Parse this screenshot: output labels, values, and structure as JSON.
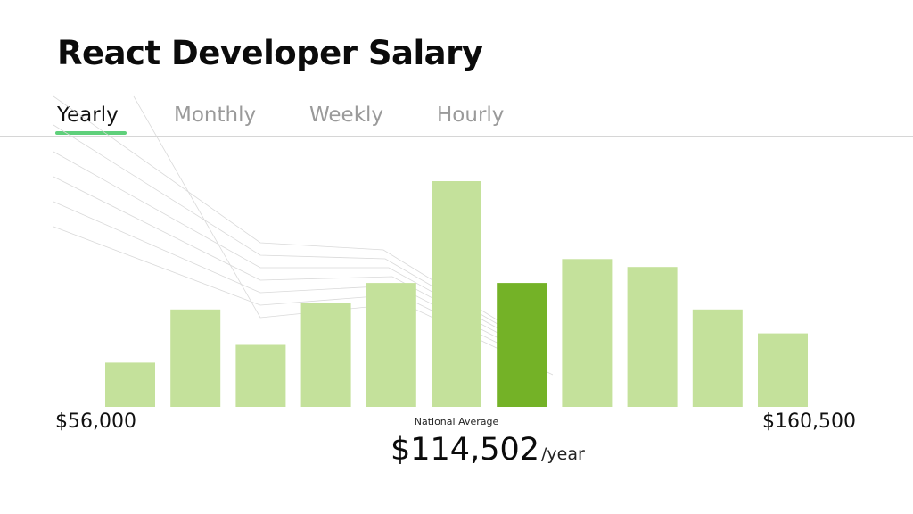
{
  "title": "React Developer Salary",
  "tabs": [
    {
      "label": "Yearly",
      "active": true
    },
    {
      "label": "Monthly",
      "active": false
    },
    {
      "label": "Weekly",
      "active": false
    },
    {
      "label": "Hourly",
      "active": false
    }
  ],
  "chart_data": {
    "type": "bar",
    "title": "React Developer Salary",
    "xlabel": "",
    "ylabel": "",
    "range_min_label": "$56,000",
    "range_max_label": "$160,500",
    "values": [
      5,
      11,
      7,
      11.7,
      14,
      25.5,
      14,
      16.7,
      15.8,
      11,
      8.3
    ],
    "ylim": [
      0,
      26
    ],
    "highlight_index": 6,
    "colors": {
      "bar": "#c4e19b",
      "highlight": "#74b227",
      "accent": "#5fd07b"
    },
    "grid": false,
    "legend": "none",
    "national_average": {
      "caption": "National Average",
      "value": "$114,502",
      "unit": "/year"
    }
  }
}
